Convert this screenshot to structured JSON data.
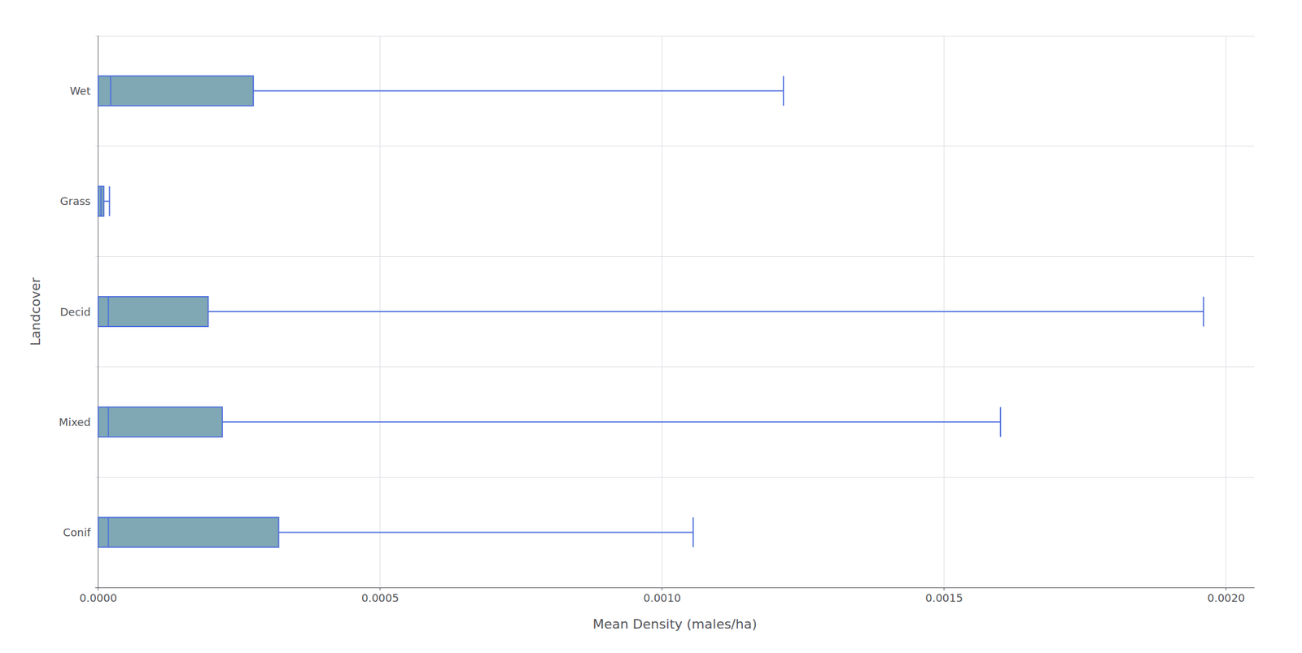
{
  "chart_data": {
    "type": "boxplot",
    "orientation": "horizontal",
    "categories": [
      "Conif",
      "Mixed",
      "Decid",
      "Grass",
      "Wet"
    ],
    "whisker_low": [
      0.0,
      0.0,
      0.0,
      0.0,
      0.0
    ],
    "q1": [
      0.0,
      0.0,
      0.0,
      0.0,
      0.0
    ],
    "median": [
      1.8e-05,
      1.8e-05,
      1.8e-05,
      5e-06,
      2.2e-05
    ],
    "q3": [
      0.00032,
      0.00022,
      0.000195,
      1e-05,
      0.000275
    ],
    "whisker_high": [
      0.001055,
      0.0016,
      0.00196,
      2e-05,
      0.001215
    ],
    "color": "#7fa8b4",
    "xlabel": "Mean Density (males/ha)",
    "ylabel": "Landcover",
    "xlim": [
      -5e-06,
      0.00205
    ],
    "xticks": [
      {
        "value": 0.0,
        "label": "0.0000"
      },
      {
        "value": 0.0005,
        "label": "0.0005"
      },
      {
        "value": 0.001,
        "label": "0.0010"
      },
      {
        "value": 0.0015,
        "label": "0.0015"
      },
      {
        "value": 0.002,
        "label": "0.0020"
      }
    ],
    "grid": true
  }
}
